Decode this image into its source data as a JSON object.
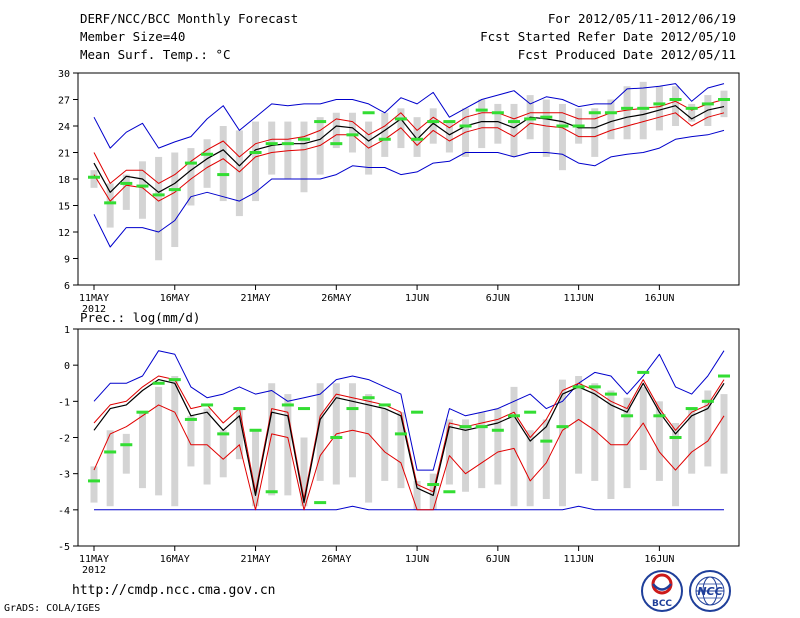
{
  "header": {
    "title": "DERF/NCC/BCC Monthly Forecast",
    "member": "Member Size=40",
    "variable": "Mean Surf. Temp.: °C",
    "period": "For 2012/05/11-2012/06/19",
    "started": "Fcst Started Refer Date 2012/05/10",
    "produced": "Fcst Produced Date 2012/05/11"
  },
  "footer": {
    "url": "http://cmdp.ncc.cma.gov.cn",
    "credit": "GrADS: COLA/IGES"
  },
  "logos": {
    "bcc": "BCC",
    "ncc": "NCC"
  },
  "colors": {
    "max_min": "#0000cc",
    "spread": "#e00000",
    "mean": "#000000",
    "observed": "#33dd33",
    "bar": "#d4d4d4"
  },
  "chart_data": [
    {
      "type": "line",
      "title": "Mean Surf. Temp.: °C",
      "ylim": [
        6,
        30
      ],
      "yticks": [
        6,
        9,
        12,
        15,
        18,
        21,
        24,
        27,
        30
      ],
      "xtick_labels": [
        "11MAY",
        "16MAY",
        "21MAY",
        "26MAY",
        "1JUN",
        "6JUN",
        "11JUN",
        "16JUN"
      ],
      "xtick_days": [
        1,
        6,
        11,
        16,
        21,
        26,
        31,
        36
      ],
      "year_label": "2012",
      "days": 40,
      "series": [
        {
          "name": "max",
          "values": [
            25.0,
            21.5,
            23.3,
            24.3,
            21.5,
            22.2,
            22.8,
            24.8,
            26.3,
            23.5,
            25.0,
            26.5,
            26.3,
            26.5,
            26.5,
            27.0,
            27.0,
            26.5,
            25.5,
            27.2,
            26.5,
            27.8,
            25.0,
            26.0,
            27.0,
            27.5,
            28.0,
            26.5,
            27.3,
            27.0,
            26.2,
            26.5,
            26.5,
            28.2,
            28.3,
            28.5,
            28.8,
            26.8,
            28.3,
            28.8
          ]
        },
        {
          "name": "spread_high",
          "values": [
            21.0,
            17.5,
            19.0,
            19.0,
            17.5,
            18.5,
            20.0,
            21.3,
            22.3,
            20.5,
            22.0,
            22.5,
            22.5,
            22.8,
            23.5,
            24.8,
            24.5,
            23.0,
            24.0,
            25.5,
            23.5,
            25.0,
            23.8,
            25.0,
            25.5,
            25.5,
            24.8,
            25.5,
            25.5,
            25.5,
            24.8,
            24.8,
            25.5,
            25.8,
            26.0,
            26.2,
            26.8,
            25.8,
            26.5,
            27.0
          ]
        },
        {
          "name": "mean",
          "values": [
            19.8,
            16.5,
            18.3,
            18.0,
            16.5,
            17.5,
            19.0,
            20.3,
            21.3,
            19.5,
            21.3,
            21.8,
            22.0,
            22.0,
            22.5,
            24.0,
            23.8,
            22.3,
            23.5,
            24.8,
            22.5,
            24.3,
            23.0,
            24.0,
            24.5,
            24.5,
            23.8,
            25.0,
            24.8,
            24.5,
            23.8,
            23.8,
            24.5,
            25.0,
            25.3,
            25.8,
            26.3,
            24.8,
            25.8,
            26.2
          ]
        },
        {
          "name": "spread_low",
          "values": [
            18.5,
            15.5,
            17.3,
            17.0,
            15.5,
            16.5,
            18.0,
            19.3,
            20.3,
            18.8,
            20.5,
            21.0,
            21.2,
            21.3,
            21.8,
            23.0,
            23.0,
            21.5,
            22.5,
            23.8,
            21.8,
            23.5,
            22.3,
            23.3,
            23.8,
            23.8,
            22.8,
            24.3,
            24.0,
            23.8,
            22.8,
            22.8,
            23.5,
            24.0,
            24.5,
            25.0,
            25.5,
            24.0,
            25.0,
            25.5
          ]
        },
        {
          "name": "min",
          "values": [
            14.0,
            10.3,
            12.5,
            12.5,
            12.0,
            13.3,
            16.0,
            16.5,
            16.0,
            15.5,
            16.5,
            18.0,
            18.0,
            18.0,
            18.0,
            18.5,
            19.5,
            19.3,
            19.3,
            18.5,
            18.8,
            19.8,
            20.0,
            21.0,
            21.0,
            21.0,
            20.5,
            21.0,
            21.0,
            20.8,
            19.8,
            19.5,
            20.5,
            20.8,
            21.0,
            21.5,
            22.5,
            22.8,
            23.0,
            23.5
          ]
        },
        {
          "name": "bar_top",
          "values": [
            19.0,
            17.5,
            18.5,
            20.0,
            20.5,
            21.0,
            21.5,
            22.5,
            24.0,
            23.5,
            24.5,
            24.5,
            24.5,
            24.5,
            25.0,
            25.5,
            25.5,
            24.5,
            25.5,
            26.0,
            25.0,
            26.0,
            24.5,
            26.0,
            27.0,
            26.5,
            26.5,
            27.5,
            27.0,
            26.5,
            26.0,
            26.0,
            27.0,
            28.5,
            29.0,
            28.5,
            28.5,
            26.5,
            27.5,
            28.0
          ]
        },
        {
          "name": "bar_bottom",
          "values": [
            17.0,
            12.5,
            14.5,
            13.5,
            8.8,
            10.3,
            15.0,
            17.0,
            15.5,
            13.8,
            15.5,
            18.5,
            18.0,
            16.5,
            18.5,
            21.5,
            21.0,
            18.5,
            20.5,
            21.5,
            20.5,
            22.0,
            21.0,
            20.5,
            21.5,
            22.0,
            20.5,
            22.5,
            20.5,
            19.0,
            22.0,
            20.5,
            22.5,
            22.5,
            22.5,
            23.5,
            24.0,
            24.5,
            24.0,
            25.0
          ]
        },
        {
          "name": "observed",
          "values": [
            18.2,
            15.3,
            17.5,
            17.2,
            16.2,
            16.8,
            19.8,
            20.8,
            18.5,
            null,
            21.0,
            22.0,
            22.0,
            22.5,
            24.5,
            22.0,
            23.0,
            25.5,
            22.5,
            24.8,
            22.5,
            24.5,
            24.5,
            24.0,
            25.8,
            25.5,
            24.5,
            24.8,
            25.0,
            24.0,
            24.0,
            25.5,
            25.5,
            26.0,
            26.0,
            26.5,
            27.0,
            26.0,
            26.5,
            27.0
          ]
        }
      ]
    },
    {
      "type": "line",
      "title": "Prec.: log(mm/d)",
      "ylim": [
        -5,
        1
      ],
      "yticks": [
        -5,
        -4,
        -3,
        -2,
        -1,
        0,
        1
      ],
      "xtick_labels": [
        "11MAY",
        "16MAY",
        "21MAY",
        "26MAY",
        "1JUN",
        "6JUN",
        "11JUN",
        "16JUN"
      ],
      "xtick_days": [
        1,
        6,
        11,
        16,
        21,
        26,
        31,
        36
      ],
      "year_label": "2012",
      "days": 40,
      "series": [
        {
          "name": "max",
          "values": [
            -1.0,
            -0.5,
            -0.5,
            -0.3,
            0.4,
            0.3,
            -0.6,
            -0.9,
            -0.8,
            -0.6,
            -0.8,
            -0.7,
            -1.0,
            -0.9,
            -0.8,
            -0.4,
            -0.3,
            -0.4,
            -0.6,
            -0.8,
            -2.9,
            -2.9,
            -1.2,
            -1.4,
            -1.3,
            -1.2,
            -1.0,
            -0.8,
            -1.2,
            -1.0,
            -0.5,
            -0.2,
            -0.3,
            -0.8,
            -0.3,
            0.3,
            -0.6,
            -0.8,
            -0.3,
            0.4
          ]
        },
        {
          "name": "mean",
          "values": [
            -1.8,
            -1.2,
            -1.1,
            -0.7,
            -0.4,
            -0.5,
            -1.4,
            -1.3,
            -1.8,
            -1.4,
            -3.6,
            -1.3,
            -1.4,
            -3.8,
            -1.5,
            -0.9,
            -1.0,
            -1.1,
            -1.2,
            -1.4,
            -3.4,
            -3.6,
            -1.7,
            -1.8,
            -1.7,
            -1.6,
            -1.4,
            -2.1,
            -1.7,
            -0.8,
            -0.6,
            -0.8,
            -1.1,
            -1.3,
            -0.5,
            -1.3,
            -1.9,
            -1.4,
            -1.2,
            -0.5
          ]
        },
        {
          "name": "spread_high",
          "values": [
            -1.6,
            -1.1,
            -1.0,
            -0.6,
            -0.3,
            -0.4,
            -1.2,
            -1.1,
            -1.6,
            -1.2,
            -3.5,
            -1.2,
            -1.3,
            -3.7,
            -1.4,
            -0.8,
            -0.9,
            -1.0,
            -1.1,
            -1.3,
            -3.3,
            -3.5,
            -1.6,
            -1.7,
            -1.6,
            -1.5,
            -1.3,
            -2.0,
            -1.5,
            -0.7,
            -0.5,
            -0.7,
            -1.0,
            -1.2,
            -0.4,
            -1.2,
            -1.8,
            -1.3,
            -1.1,
            -0.4
          ]
        },
        {
          "name": "spread_low",
          "values": [
            -2.9,
            -1.9,
            -1.7,
            -1.4,
            -1.1,
            -1.3,
            -2.2,
            -2.2,
            -2.6,
            -2.2,
            -4.0,
            -1.9,
            -2.0,
            -4.0,
            -2.5,
            -1.9,
            -1.8,
            -1.9,
            -2.4,
            -2.7,
            -4.0,
            -4.0,
            -2.5,
            -3.0,
            -2.7,
            -2.4,
            -2.3,
            -3.2,
            -2.7,
            -1.8,
            -1.5,
            -1.8,
            -2.2,
            -2.2,
            -1.6,
            -2.4,
            -2.9,
            -2.4,
            -2.1,
            -1.4
          ]
        },
        {
          "name": "min",
          "values": [
            -4.0,
            -4.0,
            -4.0,
            -4.0,
            -4.0,
            -4.0,
            -4.0,
            -4.0,
            -4.0,
            -4.0,
            -4.0,
            -4.0,
            -4.0,
            -4.0,
            -4.0,
            -4.0,
            -3.9,
            -4.0,
            -4.0,
            -4.0,
            -4.0,
            -4.0,
            -4.0,
            -4.0,
            -4.0,
            -4.0,
            -4.0,
            -4.0,
            -4.0,
            -4.0,
            -3.9,
            -4.0,
            -4.0,
            -4.0,
            -4.0,
            -4.0,
            -4.0,
            -4.0,
            -4.0,
            -4.0
          ]
        },
        {
          "name": "bar_top",
          "values": [
            -2.8,
            -1.8,
            -1.9,
            -1.3,
            -0.6,
            -0.3,
            -1.4,
            -1.2,
            -1.8,
            -1.2,
            -1.8,
            -0.5,
            -0.8,
            -2.0,
            -0.5,
            -0.5,
            -0.5,
            -0.8,
            -1.2,
            -1.3,
            -3.2,
            -3.0,
            -1.5,
            -1.5,
            -1.3,
            -1.2,
            -0.6,
            -1.8,
            -1.5,
            -0.4,
            -0.3,
            -0.5,
            -0.7,
            -0.9,
            -0.6,
            -1.0,
            -1.6,
            -1.2,
            -0.7,
            -0.8
          ]
        },
        {
          "name": "bar_bottom",
          "values": [
            -3.8,
            -3.9,
            -3.0,
            -3.4,
            -3.6,
            -3.9,
            -2.8,
            -3.3,
            -3.1,
            -2.6,
            -3.9,
            -3.6,
            -3.6,
            -3.9,
            -3.2,
            -3.3,
            -3.1,
            -3.8,
            -3.2,
            -3.4,
            -4.0,
            -4.0,
            -3.3,
            -3.5,
            -3.4,
            -3.3,
            -3.9,
            -3.9,
            -3.7,
            -3.9,
            -3.0,
            -3.2,
            -3.7,
            -3.4,
            -2.9,
            -3.2,
            -3.9,
            -3.0,
            -2.8,
            -3.0
          ]
        },
        {
          "name": "observed",
          "values": [
            -3.2,
            -2.4,
            -2.2,
            -1.3,
            -0.5,
            -0.4,
            -1.5,
            -1.1,
            -1.9,
            -1.2,
            -1.8,
            -3.5,
            -1.1,
            -1.2,
            -3.8,
            -2.0,
            -1.2,
            -0.9,
            -1.1,
            -1.9,
            -1.3,
            -3.3,
            -3.5,
            -1.7,
            -1.7,
            -1.8,
            -1.4,
            -1.3,
            -2.1,
            -1.7,
            -0.6,
            -0.6,
            -0.8,
            -1.4,
            -0.2,
            -1.4,
            -2.0,
            -1.2,
            -1.0,
            -0.3
          ]
        }
      ]
    }
  ]
}
